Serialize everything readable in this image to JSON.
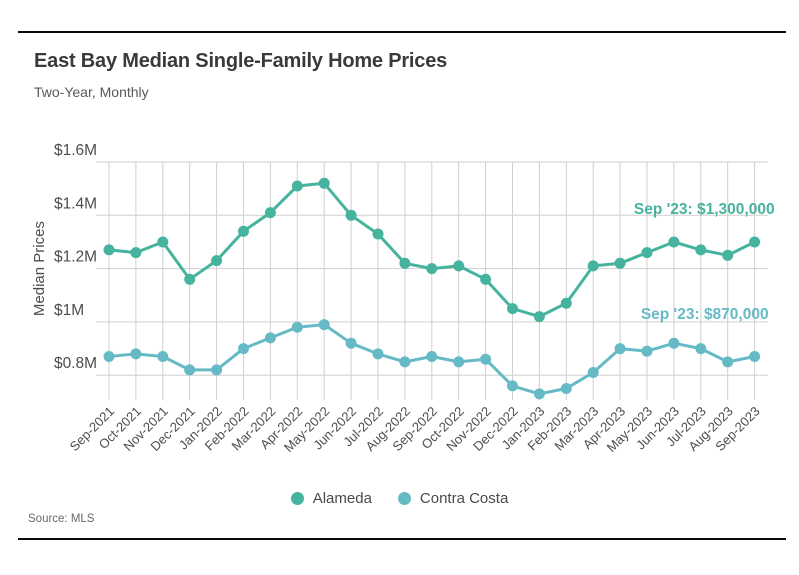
{
  "header": {
    "title": "East Bay Median Single-Family Home Prices",
    "subtitle": "Two-Year, Monthly"
  },
  "footer": {
    "source": "Source: MLS"
  },
  "legend": {
    "items": [
      {
        "label": "Alameda",
        "color": "#46b39e"
      },
      {
        "label": "Contra Costa",
        "color": "#66bac6"
      }
    ]
  },
  "chart_data": {
    "type": "line",
    "title": "East Bay Median Single-Family Home Prices",
    "subtitle": "Two-Year, Monthly",
    "xlabel": "",
    "ylabel": "Median Prices",
    "unit": "USD millions",
    "grid": true,
    "legend_position": "bottom",
    "ylim": [
      0.7,
      1.6
    ],
    "y_tick_values": [
      1.6,
      1.4,
      1.2,
      1.0,
      0.8
    ],
    "y_tick_labels": [
      "$1.6M",
      "$1.4M",
      "$1.2M",
      "$1M",
      "$0.8M"
    ],
    "categories": [
      "Sep-2021",
      "Oct-2021",
      "Nov-2021",
      "Dec-2021",
      "Jan-2022",
      "Feb-2022",
      "Mar-2022",
      "Apr-2022",
      "May-2022",
      "Jun-2022",
      "Jul-2022",
      "Aug-2022",
      "Sep-2022",
      "Oct-2022",
      "Nov-2022",
      "Dec-2022",
      "Jan-2023",
      "Feb-2023",
      "Mar-2023",
      "Apr-2023",
      "May-2023",
      "Jun-2023",
      "Jul-2023",
      "Aug-2023",
      "Sep-2023"
    ],
    "series": [
      {
        "name": "Alameda",
        "color": "#46b39e",
        "values": [
          1.27,
          1.26,
          1.3,
          1.16,
          1.23,
          1.34,
          1.41,
          1.51,
          1.52,
          1.4,
          1.33,
          1.22,
          1.2,
          1.21,
          1.16,
          1.05,
          1.02,
          1.07,
          1.21,
          1.22,
          1.26,
          1.3,
          1.27,
          1.25,
          1.3
        ]
      },
      {
        "name": "Contra Costa",
        "color": "#66bac6",
        "values": [
          0.87,
          0.88,
          0.87,
          0.82,
          0.82,
          0.9,
          0.94,
          0.98,
          0.99,
          0.92,
          0.88,
          0.85,
          0.87,
          0.85,
          0.86,
          0.76,
          0.73,
          0.75,
          0.81,
          0.9,
          0.89,
          0.92,
          0.9,
          0.85,
          0.87
        ]
      }
    ],
    "annotations": [
      {
        "series": "Alameda",
        "text": "Sep '23: $1,300,000"
      },
      {
        "series": "Contra Costa",
        "text": "Sep '23: $870,000"
      }
    ]
  }
}
